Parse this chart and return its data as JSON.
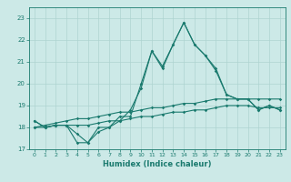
{
  "xlabel": "Humidex (Indice chaleur)",
  "x": [
    0,
    1,
    2,
    3,
    4,
    5,
    6,
    7,
    8,
    9,
    10,
    11,
    12,
    13,
    14,
    15,
    16,
    17,
    18,
    19,
    20,
    21,
    22,
    23
  ],
  "line1": [
    18.3,
    18.0,
    18.1,
    18.1,
    17.7,
    17.3,
    18.0,
    18.0,
    18.5,
    18.5,
    20.0,
    21.5,
    20.8,
    21.8,
    22.8,
    21.8,
    21.3,
    20.6,
    19.5,
    19.3,
    19.3,
    18.8,
    19.0,
    18.8
  ],
  "line2": [
    18.3,
    18.0,
    18.1,
    18.1,
    17.3,
    17.3,
    17.8,
    18.0,
    18.3,
    18.8,
    19.8,
    21.5,
    20.7,
    21.8,
    22.8,
    21.8,
    21.3,
    20.7,
    19.5,
    19.3,
    19.3,
    18.8,
    19.0,
    18.8
  ],
  "line3": [
    18.0,
    18.1,
    18.2,
    18.3,
    18.4,
    18.4,
    18.5,
    18.6,
    18.7,
    18.7,
    18.8,
    18.9,
    18.9,
    19.0,
    19.1,
    19.1,
    19.2,
    19.3,
    19.3,
    19.3,
    19.3,
    19.3,
    19.3,
    19.3
  ],
  "line4": [
    18.0,
    18.0,
    18.1,
    18.1,
    18.1,
    18.1,
    18.2,
    18.3,
    18.3,
    18.4,
    18.5,
    18.5,
    18.6,
    18.7,
    18.7,
    18.8,
    18.8,
    18.9,
    19.0,
    19.0,
    19.0,
    18.9,
    18.9,
    18.9
  ],
  "ylim": [
    17.0,
    23.5
  ],
  "yticks": [
    17,
    18,
    19,
    20,
    21,
    22,
    23
  ],
  "xticks": [
    0,
    1,
    2,
    3,
    4,
    5,
    6,
    7,
    8,
    9,
    10,
    11,
    12,
    13,
    14,
    15,
    16,
    17,
    18,
    19,
    20,
    21,
    22,
    23
  ],
  "line_color": "#1a7a6e",
  "bg_color": "#cce9e7",
  "grid_color": "#aed4d1"
}
